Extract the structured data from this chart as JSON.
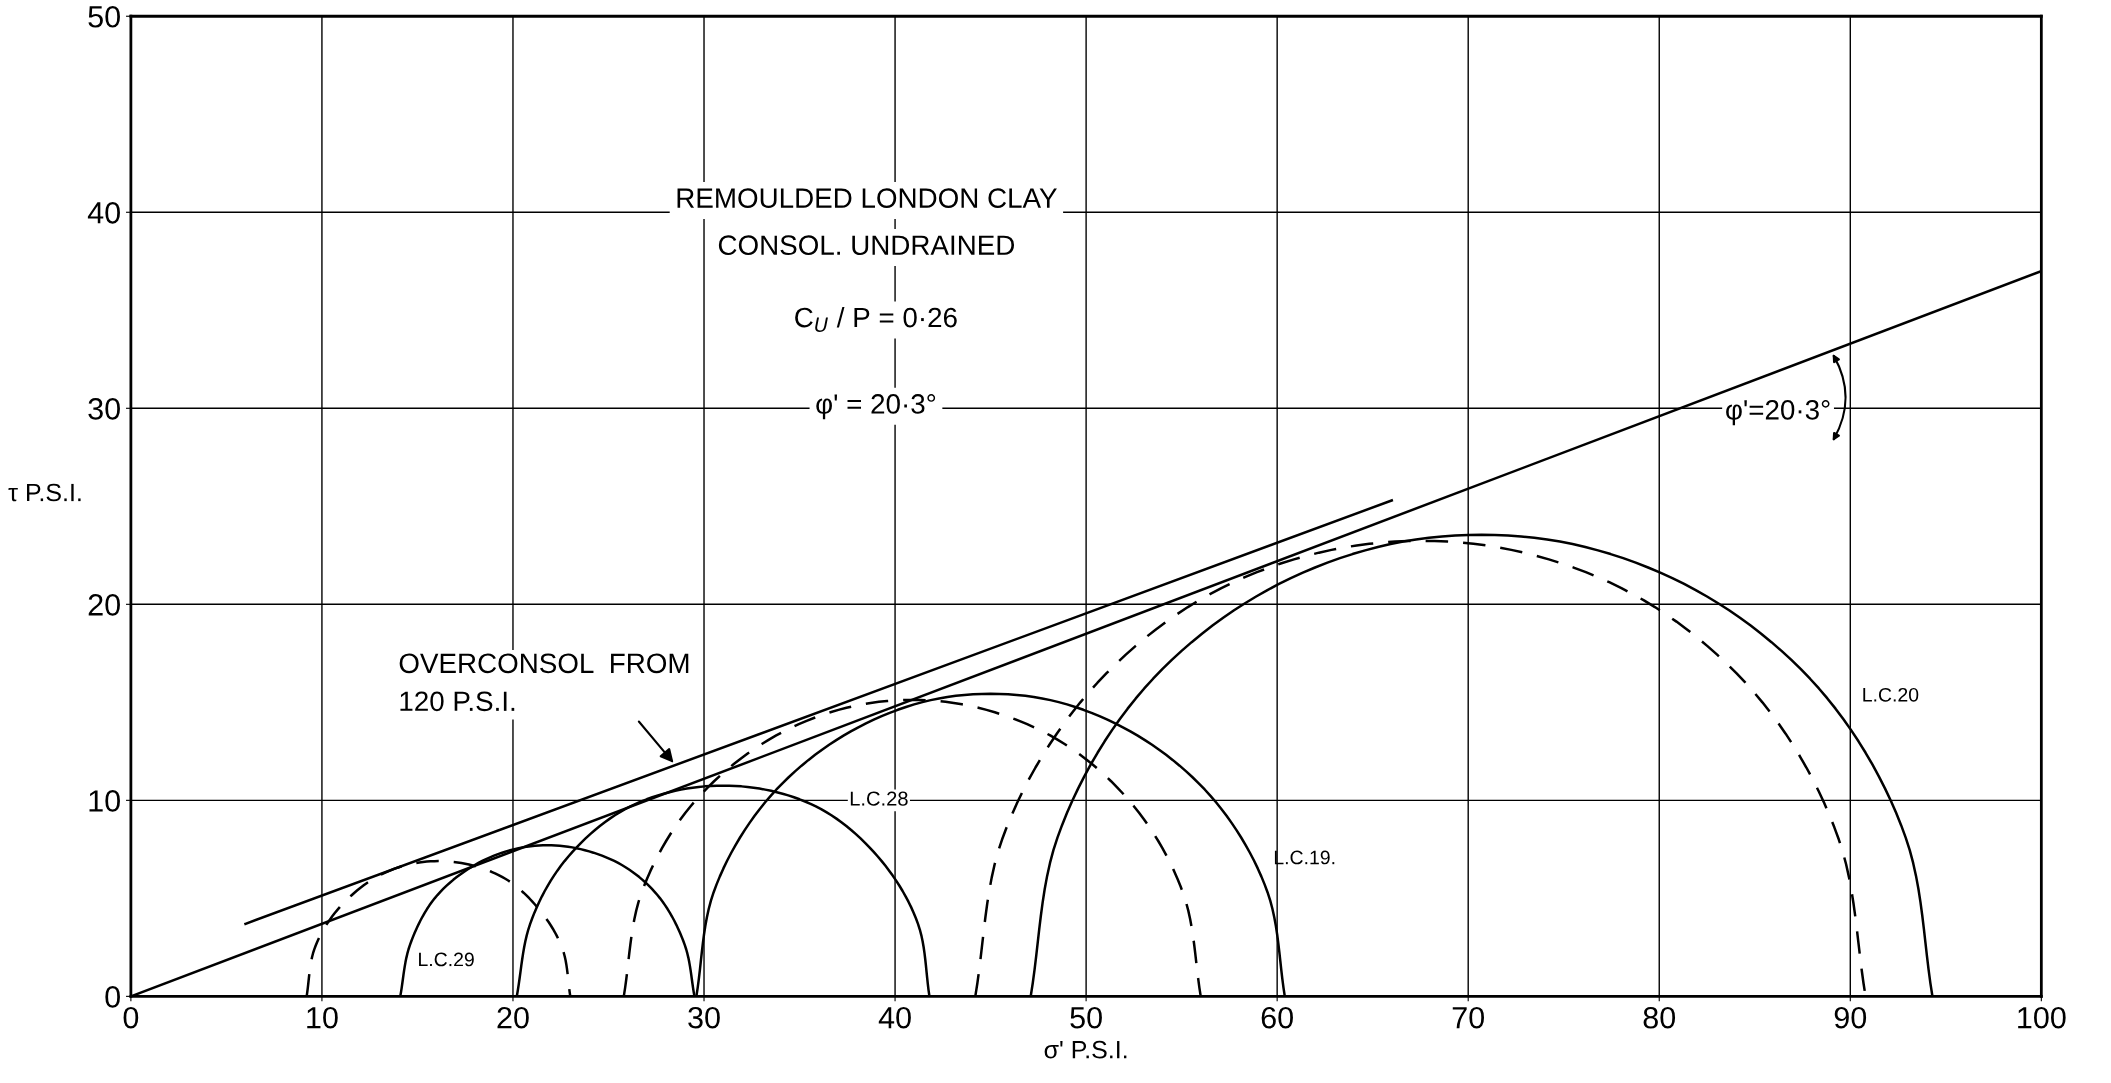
{
  "chart_data": {
    "type": "line",
    "xlabel": "σ' P.S.I.",
    "ylabel": "τ P.S.I.",
    "xlim": [
      0,
      100
    ],
    "ylim": [
      0,
      50
    ],
    "xticks": [
      0,
      10,
      20,
      30,
      40,
      50,
      60,
      70,
      80,
      90,
      100
    ],
    "yticks": [
      0,
      10,
      20,
      30,
      40,
      50
    ],
    "grid": true,
    "marker": "none",
    "series": [
      {
        "color": "#000000",
        "line_style": "solid",
        "x": [
          14.1,
          14.6,
          15.9,
          18.0,
          20.5,
          23.1,
          25.7,
          27.7,
          29.0,
          29.5
        ],
        "values": [
          0,
          2.6,
          5.0,
          6.7,
          7.6,
          7.6,
          6.7,
          5.0,
          2.6,
          0
        ]
      },
      {
        "color": "#000000",
        "line_style": "solid",
        "x": [
          20.2,
          20.9,
          22.7,
          25.6,
          29.1,
          32.9,
          36.4,
          39.3,
          41.2,
          41.8
        ],
        "values": [
          0,
          3.7,
          6.9,
          9.4,
          10.6,
          10.6,
          9.4,
          6.9,
          3.7,
          0
        ]
      },
      {
        "color": "#000000",
        "line_style": "solid",
        "x": [
          29.6,
          30.5,
          33.2,
          37.3,
          42.3,
          47.7,
          52.7,
          56.8,
          59.5,
          60.4
        ],
        "values": [
          0,
          5.3,
          9.9,
          13.3,
          15.2,
          15.2,
          13.3,
          9.9,
          5.3,
          0
        ]
      },
      {
        "color": "#000000",
        "line_style": "solid",
        "x": [
          47.1,
          48.5,
          52.6,
          58.9,
          66.6,
          74.8,
          82.5,
          88.8,
          92.9,
          94.3
        ],
        "values": [
          0,
          8.1,
          15.2,
          20.4,
          23.2,
          23.2,
          20.4,
          15.2,
          8.1,
          0
        ]
      },
      {
        "color": "#000000",
        "line_style": "dashed",
        "x": [
          9.2,
          9.6,
          10.8,
          12.7,
          14.9,
          17.3,
          19.6,
          21.4,
          22.6,
          23.0
        ],
        "values": [
          0,
          2.4,
          4.4,
          6.0,
          6.8,
          6.8,
          6.0,
          4.4,
          2.4,
          0
        ]
      },
      {
        "color": "#000000",
        "line_style": "dashed",
        "x": [
          25.8,
          26.7,
          29.3,
          33.4,
          38.3,
          43.5,
          48.5,
          52.5,
          55.1,
          56.0
        ],
        "values": [
          0,
          5.2,
          9.7,
          13.1,
          14.9,
          14.9,
          13.1,
          9.7,
          5.2,
          0
        ]
      },
      {
        "color": "#000000",
        "line_style": "dashed",
        "x": [
          44.2,
          45.6,
          49.7,
          55.9,
          63.5,
          71.6,
          79.2,
          85.4,
          89.4,
          90.8
        ],
        "values": [
          0,
          8.0,
          15.0,
          20.2,
          22.9,
          22.9,
          20.2,
          15.0,
          8.0,
          0
        ]
      },
      {
        "color": "#000000",
        "line_style": "solid",
        "x": [
          0,
          100
        ],
        "values": [
          0,
          37.0
        ]
      },
      {
        "color": "#000000",
        "line_style": "solid",
        "x": [
          6,
          66
        ],
        "values": [
          3.7,
          25.3
        ]
      }
    ],
    "annotations": [
      "REMOULDED LONDON CLAY",
      "CONSOL. UNDRAINED",
      "C$_{U}$ / P = 0·26",
      "φ' = 20·3°",
      "L.C.29",
      "L.C.28",
      "L.C.19.",
      "L.C.20",
      {
        "text": "φ'=20·3°",
        "x": 89,
        "y": 32.9
      },
      {
        "text": "OVERCONSOL  FROM\n120 P.S.I.",
        "x": 28.5,
        "y": 11.8
      }
    ]
  }
}
